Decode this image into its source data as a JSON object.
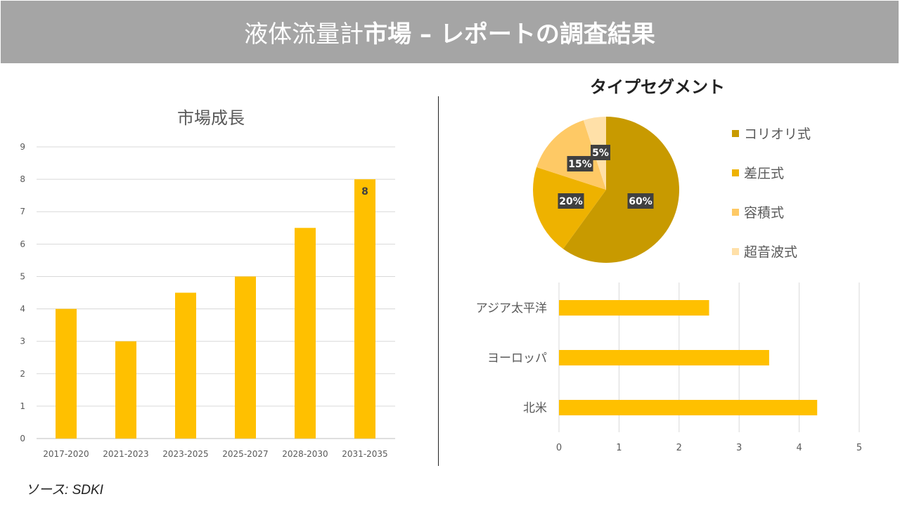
{
  "header": {
    "title_light": "液体流量計",
    "title_bold": "市場 – レポートの調査結果"
  },
  "source": "ソース: SDKI",
  "chart_data": [
    {
      "type": "bar",
      "title": "市場成長",
      "categories": [
        "2017-2020",
        "2021-2023",
        "2023-2025",
        "2025-2027",
        "2028-2030",
        "2031-2035"
      ],
      "values": [
        4,
        3,
        4.5,
        5,
        6.5,
        8
      ],
      "data_labels": {
        "2031-2035": "8"
      },
      "ylim": [
        0,
        9
      ],
      "yticks": [
        0,
        1,
        2,
        3,
        4,
        5,
        6,
        7,
        8,
        9
      ],
      "grid": true,
      "color": "#ffc000"
    },
    {
      "type": "pie",
      "title": "タイプセグメント",
      "labels": [
        "コリオリ式",
        "差圧式",
        "容積式",
        "超音波式"
      ],
      "values": [
        60,
        20,
        15,
        5
      ],
      "data_labels": [
        "60%",
        "20%",
        "15%",
        "5%"
      ],
      "colors": [
        "#c89a00",
        "#eeb200",
        "#fec965",
        "#ffe0a8"
      ],
      "legend": "right"
    },
    {
      "type": "bar",
      "orientation": "horizontal",
      "categories": [
        "アジア太平洋",
        "ヨーロッパ",
        "北米"
      ],
      "values": [
        2.5,
        3.5,
        4.3
      ],
      "xlim": [
        0,
        5
      ],
      "xticks": [
        0,
        1,
        2,
        3,
        4,
        5
      ],
      "grid": true,
      "color": "#ffc000"
    }
  ]
}
